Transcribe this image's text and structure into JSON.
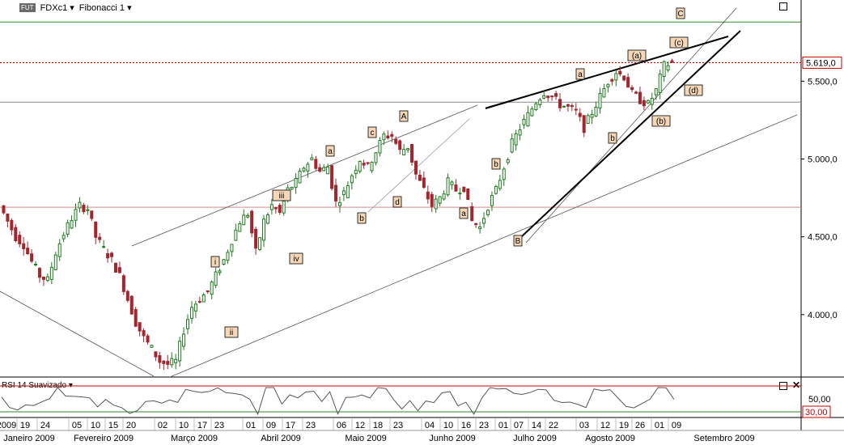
{
  "header": {
    "market_badge": "FUT",
    "symbol": "FDXc1",
    "indicator": "Fibonacci 1"
  },
  "rsi_panel": {
    "title": "RSI 14 Suavizado",
    "ticks": [
      "50,00"
    ],
    "level_label": "30,00"
  },
  "colors": {
    "up_candle": "#1f7a1f",
    "down_candle": "#a3262f",
    "price_line": "#cc0000",
    "label_box": "#f5d7b8",
    "fib_line": "#2e8b2e"
  },
  "chart_data": {
    "type": "candlestick",
    "title": "",
    "y_axis_ticks": [
      "5.500,0",
      "5.000,0",
      "4.500,0",
      "4.000,0"
    ],
    "ylim": [
      3630,
      5980
    ],
    "last_price_label": "5.619,0",
    "horizontal_levels": [
      5880,
      5365,
      4690
    ],
    "x_ticks": [
      "2009",
      "19",
      "24",
      "05",
      "10",
      "15",
      "20",
      "02",
      "10",
      "17",
      "23",
      "01",
      "09",
      "17",
      "23",
      "06",
      "12",
      "18",
      "23",
      "04",
      "10",
      "16",
      "23",
      "01",
      "07",
      "14",
      "22",
      "03",
      "12",
      "19",
      "26",
      "01",
      "09"
    ],
    "month_labels": [
      "Janeiro 2009",
      "Fevereiro 2009",
      "Março 2009",
      "Abril 2009",
      "Maio 2009",
      "Junho 2009",
      "Julho 2009",
      "Agosto 2009",
      "Setembro 2009"
    ],
    "close_path": [
      4700,
      4600,
      4500,
      4450,
      4340,
      4250,
      4220,
      4400,
      4520,
      4620,
      4700,
      4680,
      4500,
      4420,
      4350,
      4250,
      4100,
      3950,
      3850,
      3780,
      3700,
      3680,
      3700,
      3900,
      4050,
      4100,
      4150,
      4250,
      4350,
      4480,
      4600,
      4650,
      4400,
      4600,
      4700,
      4650,
      4800,
      4850,
      4950,
      5000,
      4920,
      4950,
      4720,
      4780,
      4900,
      5000,
      4950,
      5050,
      5150,
      5150,
      5050,
      5080,
      4900,
      4800,
      4700,
      4750,
      4850,
      4800,
      4820,
      4600,
      4560,
      4700,
      4800,
      4950,
      5100,
      5200,
      5280,
      5370,
      5430,
      5400,
      5350,
      5330,
      5300,
      5200,
      5300,
      5400,
      5500,
      5560,
      5530,
      5420,
      5380,
      5350,
      5440,
      5600,
      5619
    ],
    "wave_labels": [
      {
        "text": "i",
        "boxed": true
      },
      {
        "text": "ii",
        "boxed": true
      },
      {
        "text": "iii",
        "boxed": true
      },
      {
        "text": "iv",
        "boxed": true
      },
      {
        "text": "a",
        "boxed": true
      },
      {
        "text": "b",
        "boxed": true
      },
      {
        "text": "c",
        "boxed": true
      },
      {
        "text": "d",
        "boxed": true
      },
      {
        "text": "A",
        "boxed": true
      },
      {
        "text": "a",
        "boxed": true
      },
      {
        "text": "b",
        "boxed": true
      },
      {
        "text": "B",
        "boxed": true
      },
      {
        "text": "a",
        "boxed": true
      },
      {
        "text": "b",
        "boxed": true
      },
      {
        "text": "(a)",
        "boxed": true
      },
      {
        "text": "(b)",
        "boxed": true
      },
      {
        "text": "(c)",
        "boxed": true
      },
      {
        "text": "(d)",
        "boxed": true
      },
      {
        "text": "C",
        "boxed": true
      }
    ]
  }
}
